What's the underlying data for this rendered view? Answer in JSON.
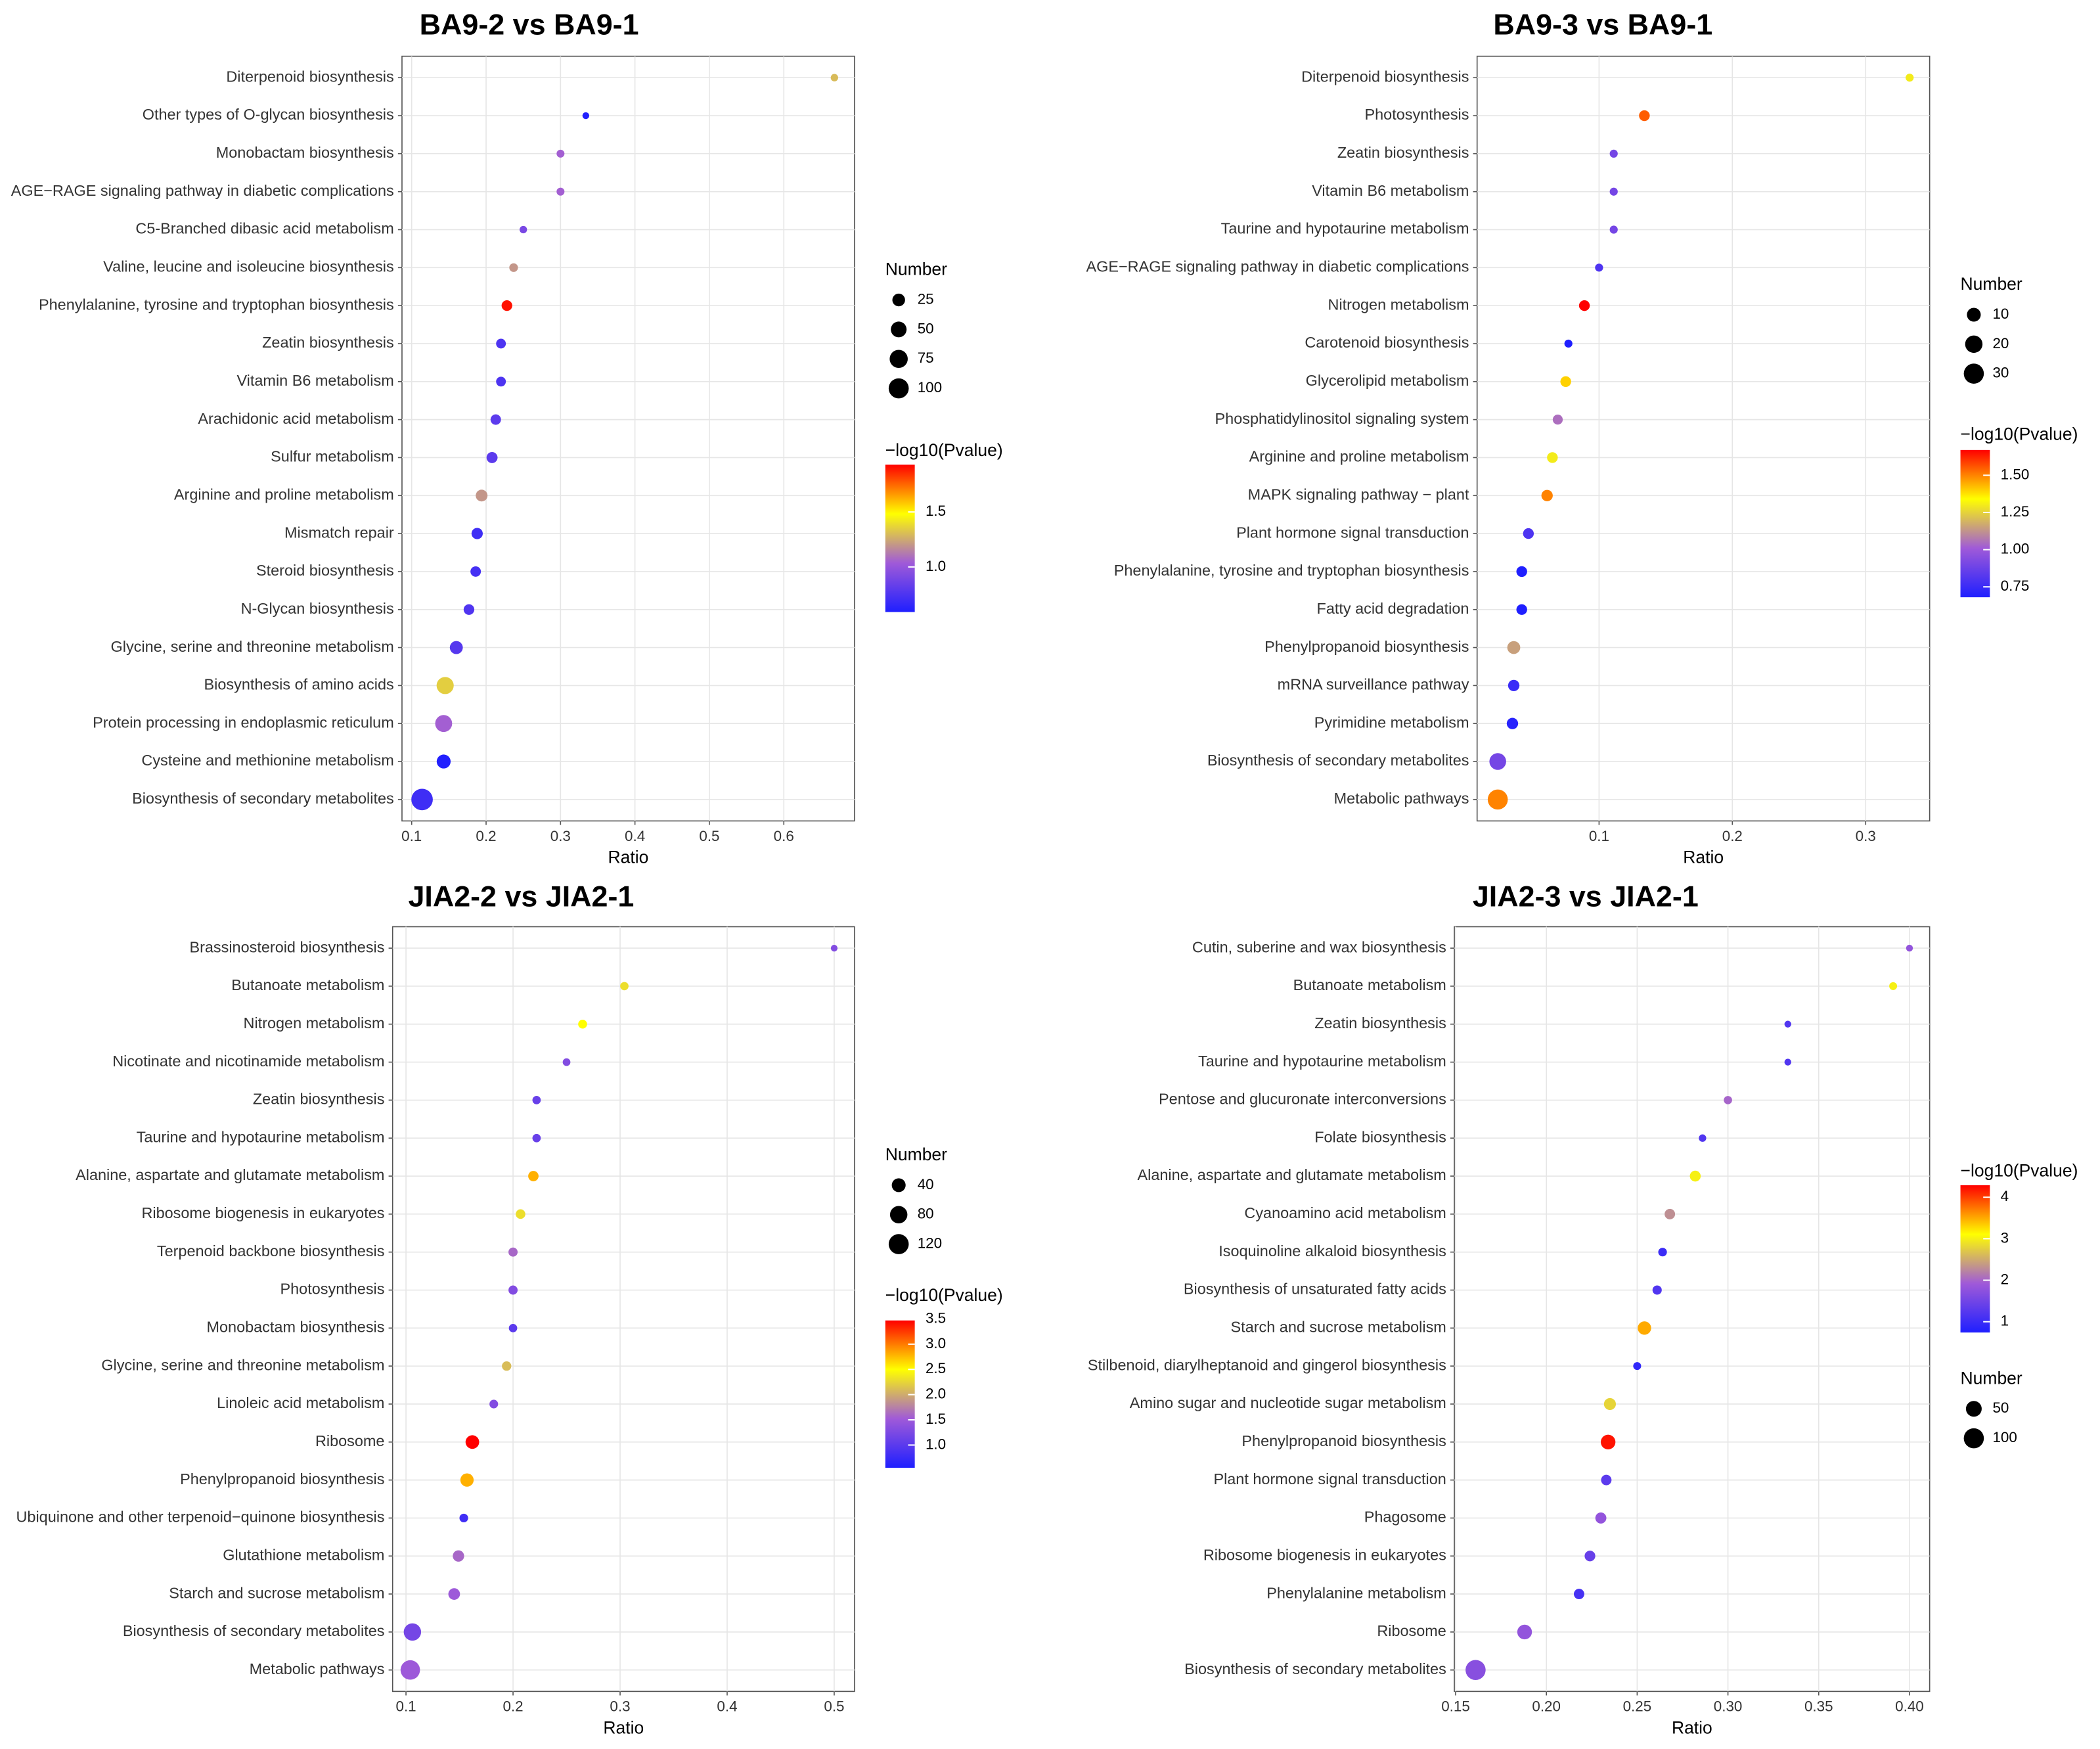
{
  "chart_data": [
    {
      "type": "bubble",
      "title": "BA9-2 vs BA9-1",
      "x_label": "Ratio",
      "categories": [
        "Diterpenoid biosynthesis",
        "Other types of O-glycan biosynthesis",
        "Monobactam biosynthesis",
        "AGE−RAGE signaling pathway in diabetic complications",
        "C5-Branched dibasic acid metabolism",
        "Valine, leucine and isoleucine biosynthesis",
        "Phenylalanine, tyrosine and tryptophan biosynthesis",
        "Zeatin biosynthesis",
        "Vitamin B6 metabolism",
        "Arachidonic acid metabolism",
        "Sulfur metabolism",
        "Arginine and proline metabolism",
        "Mismatch repair",
        "Steroid biosynthesis",
        "N-Glycan biosynthesis",
        "Glycine, serine and threonine metabolism",
        "Biosynthesis of amino acids",
        "Protein processing in endoplasmic reticulum",
        "Cysteine and methionine metabolism",
        "Biosynthesis of secondary metabolites"
      ],
      "values": [
        0.668,
        0.334,
        0.3,
        0.3,
        0.25,
        0.237,
        0.228,
        0.22,
        0.22,
        0.213,
        0.208,
        0.194,
        0.188,
        0.186,
        0.177,
        0.16,
        0.145,
        0.143,
        0.143,
        0.114
      ],
      "sizes": [
        2,
        1,
        3,
        3,
        2,
        5,
        13,
        9,
        9,
        12,
        15,
        19,
        16,
        12,
        13,
        27,
        64,
        62,
        34,
        120
      ],
      "color_values": [
        1.3,
        0.6,
        1.05,
        1.05,
        0.9,
        1.2,
        1.9,
        0.75,
        0.75,
        0.8,
        0.8,
        1.2,
        0.7,
        0.72,
        0.76,
        0.78,
        1.35,
        1.05,
        0.6,
        0.7
      ],
      "xlim": [
        0.087,
        0.695
      ],
      "xticks": [
        0.1,
        0.2,
        0.3,
        0.4,
        0.5,
        0.6
      ],
      "grid": true,
      "size_legend": {
        "title": "Number",
        "values": [
          25,
          50,
          75,
          100
        ]
      },
      "color_legend": {
        "title": "−log10(Pvalue)",
        "lim": [
          0.59,
          1.93
        ],
        "ticks": [
          {
            "value": 1,
            "label": "1.0"
          },
          1.5
        ],
        "colors": [
          "#1f1fff",
          "#a05ad8",
          "#ffff00",
          "#ff0000"
        ]
      }
    },
    {
      "type": "bubble",
      "title": "BA9-3 vs BA9-1",
      "x_label": "Ratio",
      "categories": [
        "Diterpenoid biosynthesis",
        "Photosynthesis",
        "Zeatin biosynthesis",
        "Vitamin B6 metabolism",
        "Taurine and hypotaurine metabolism",
        "AGE−RAGE signaling pathway in diabetic complications",
        "Nitrogen metabolism",
        "Carotenoid biosynthesis",
        "Glycerolipid metabolism",
        "Phosphatidylinositol signaling system",
        "Arginine and proline metabolism",
        "MAPK signaling pathway − plant",
        "Plant hormone signal transduction",
        "Phenylalanine, tyrosine and tryptophan biosynthesis",
        "Fatty acid degradation",
        "Phenylpropanoid biosynthesis",
        "mRNA surveillance pathway",
        "Pyrimidine metabolism",
        "Biosynthesis of secondary metabolites",
        "Metabolic pathways"
      ],
      "values": [
        0.333,
        0.134,
        0.111,
        0.111,
        0.111,
        0.1,
        0.089,
        0.077,
        0.075,
        0.069,
        0.065,
        0.061,
        0.047,
        0.042,
        0.042,
        0.036,
        0.036,
        0.035,
        0.024,
        0.024
      ],
      "sizes": [
        1,
        4,
        1,
        1,
        1,
        1,
        4,
        1,
        4,
        3,
        4,
        5,
        4,
        4,
        4,
        8,
        5,
        5,
        18,
        30
      ],
      "color_values": [
        1.3,
        1.55,
        0.9,
        0.9,
        0.9,
        0.8,
        1.7,
        0.65,
        1.4,
        1.05,
        1.3,
        1.5,
        0.8,
        0.65,
        0.65,
        1.15,
        0.75,
        0.7,
        0.9,
        1.5
      ],
      "xlim": [
        0.0085,
        0.348
      ],
      "xticks": [
        0.1,
        0.2,
        0.3
      ],
      "grid": true,
      "size_legend": {
        "title": "Number",
        "values": [
          10,
          20,
          30
        ]
      },
      "color_legend": {
        "title": "−log10(Pvalue)",
        "lim": [
          0.68,
          1.67
        ],
        "ticks": [
          0.75,
          {
            "value": 1,
            "label": "1.00"
          },
          1.25,
          {
            "value": 1.5,
            "label": "1.50"
          }
        ],
        "colors": [
          "#1f1fff",
          "#a05ad8",
          "#ffff00",
          "#ff0000"
        ]
      }
    },
    {
      "type": "bubble",
      "title": "JIA2-2 vs JIA2-1",
      "x_label": "Ratio",
      "categories": [
        "Brassinosteroid biosynthesis",
        "Butanoate metabolism",
        "Nitrogen metabolism",
        "Nicotinate and nicotinamide metabolism",
        "Zeatin biosynthesis",
        "Taurine and hypotaurine metabolism",
        "Alanine, aspartate and glutamate metabolism",
        "Ribosome biogenesis in eukaryotes",
        "Terpenoid backbone biosynthesis",
        "Photosynthesis",
        "Monobactam biosynthesis",
        "Glycine, serine and threonine metabolism",
        "Linoleic acid metabolism",
        "Ribosome",
        "Phenylpropanoid biosynthesis",
        "Ubiquinone and other terpenoid−quinone biosynthesis",
        "Glutathione metabolism",
        "Starch and sucrose metabolism",
        "Biosynthesis of secondary metabolites",
        "Metabolic pathways"
      ],
      "values": [
        0.5,
        0.304,
        0.265,
        0.25,
        0.222,
        0.222,
        0.219,
        0.207,
        0.2,
        0.2,
        0.2,
        0.194,
        0.182,
        0.162,
        0.157,
        0.154,
        0.149,
        0.145,
        0.106,
        0.104
      ],
      "sizes": [
        1,
        5,
        7,
        3,
        5,
        5,
        14,
        10,
        8,
        8,
        5,
        9,
        6,
        38,
        35,
        6,
        20,
        22,
        80,
        110
      ],
      "color_values": [
        1.3,
        2.3,
        2.5,
        1.3,
        1.1,
        1.1,
        2.8,
        2.3,
        1.6,
        1.3,
        1.0,
        2.1,
        1.3,
        3.5,
        2.8,
        0.8,
        1.6,
        1.5,
        1.2,
        1.5
      ],
      "xlim": [
        0.0875,
        0.519
      ],
      "xticks": [
        0.1,
        0.2,
        0.3,
        0.4,
        0.5
      ],
      "grid": true,
      "size_legend": {
        "title": "Number",
        "values": [
          40,
          80,
          120
        ]
      },
      "color_legend": {
        "title": "−log10(Pvalue)",
        "lim": [
          0.55,
          3.47
        ],
        "ticks": [
          {
            "value": 1,
            "label": "1.0"
          },
          1.5,
          {
            "value": 2,
            "label": "2.0"
          },
          2.5,
          {
            "value": 3,
            "label": "3.0"
          },
          3.5
        ],
        "colors": [
          "#1f1fff",
          "#a05ad8",
          "#ffff00",
          "#ff0000"
        ]
      }
    },
    {
      "type": "bubble",
      "title": "JIA2-3 vs JIA2-1",
      "x_label": "Ratio",
      "categories": [
        "Cutin, suberine and wax biosynthesis",
        "Butanoate metabolism",
        "Zeatin biosynthesis",
        "Taurine and hypotaurine metabolism",
        "Pentose and glucuronate interconversions",
        "Folate biosynthesis",
        "Alanine, aspartate and glutamate metabolism",
        "Cyanoamino acid metabolism",
        "Isoquinoline alkaloid biosynthesis",
        "Biosynthesis of unsaturated fatty acids",
        "Starch and sucrose metabolism",
        "Stilbenoid, diarylheptanoid and gingerol biosynthesis",
        "Amino sugar and nucleotide sugar metabolism",
        "Phenylpropanoid biosynthesis",
        "Plant hormone signal transduction",
        "Phagosome",
        "Ribosome biogenesis in eukaryotes",
        "Phenylalanine metabolism",
        "Ribosome",
        "Biosynthesis of secondary metabolites"
      ],
      "values": [
        0.4,
        0.391,
        0.333,
        0.333,
        0.3,
        0.286,
        0.282,
        0.268,
        0.264,
        0.261,
        0.254,
        0.25,
        0.235,
        0.234,
        0.233,
        0.23,
        0.224,
        0.218,
        0.188,
        0.161
      ],
      "sizes": [
        1,
        3,
        1,
        1,
        4,
        2,
        14,
        12,
        5,
        7,
        30,
        3,
        20,
        40,
        12,
        15,
        13,
        12,
        40,
        100
      ],
      "color_values": [
        1.8,
        3.0,
        1.2,
        1.2,
        2.0,
        1.2,
        3.0,
        2.3,
        1.0,
        1.2,
        3.5,
        0.9,
        2.8,
        4.2,
        1.3,
        1.8,
        1.4,
        1.1,
        1.8,
        1.7
      ],
      "xlim": [
        0.1493,
        0.4111
      ],
      "xticks": [
        0.15,
        {
          "value": 0.2,
          "label": "0.20"
        },
        0.25,
        {
          "value": 0.3,
          "label": "0.30"
        },
        0.35,
        {
          "value": 0.4,
          "label": "0.40"
        }
      ],
      "grid": true,
      "size_legend": {
        "title": "Number",
        "values": [
          50,
          100
        ]
      },
      "color_legend": {
        "title": "−log10(Pvalue)",
        "lim": [
          0.74,
          4.29
        ],
        "ticks": [
          1,
          2,
          3,
          4
        ],
        "colors": [
          "#1f1fff",
          "#a05ad8",
          "#ffff00",
          "#ff0000"
        ]
      }
    }
  ]
}
